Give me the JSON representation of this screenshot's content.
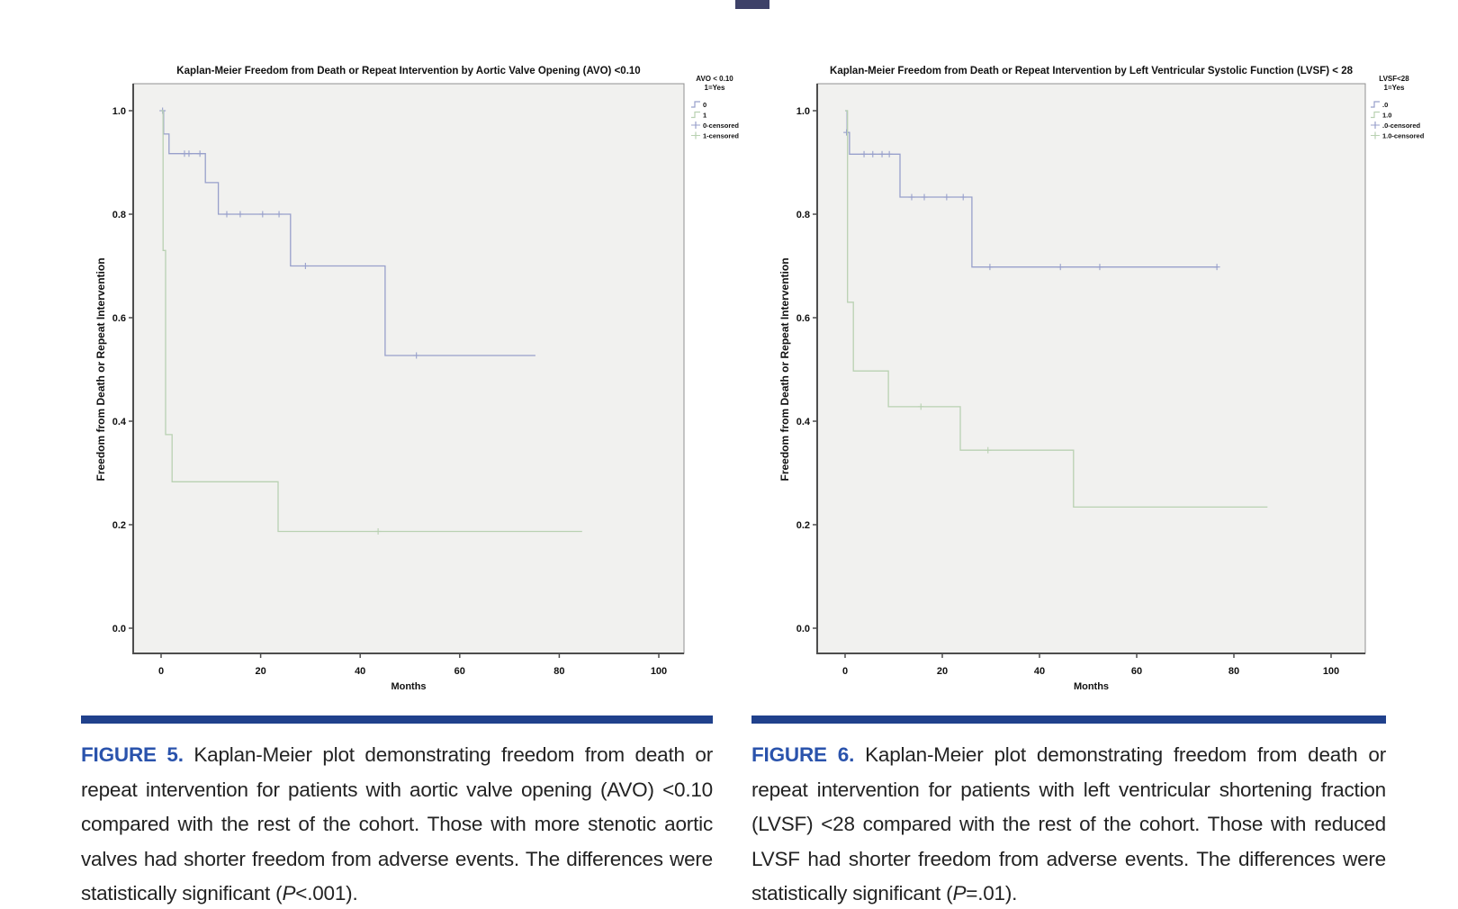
{
  "chart_data": [
    {
      "type": "line",
      "subtype": "kaplan-meier-step",
      "title": "Kaplan-Meier Freedom from Death or Repeat Intervention by Aortic Valve Opening (AVO) <0.10",
      "xlabel": "Months",
      "ylabel": "Freedom from Death or Repeat Intervention",
      "xlim": [
        0,
        100
      ],
      "ylim": [
        0.0,
        1.0
      ],
      "xticks": [
        0,
        20,
        40,
        60,
        80,
        100
      ],
      "yticks": [
        "1.0",
        "0.8",
        "0.6",
        "0.4",
        "0.2",
        "0.0"
      ],
      "grid": false,
      "legend_position": "outside-top-right",
      "colors": {
        "plot_bg": "#f1f1ef",
        "frame": "#909090",
        "axis": "#4d4d4d",
        "text": "#111111"
      },
      "legend": {
        "header_line1": "AVO < 0.10",
        "header_line2": "1=Yes",
        "items": [
          {
            "label": "0",
            "glyph": "line",
            "color": "#98a0cb"
          },
          {
            "label": "1",
            "glyph": "line",
            "color": "#b9d1b2"
          },
          {
            "label": "0-censored",
            "glyph": "plus",
            "color": "#98a0cb"
          },
          {
            "label": "1-censored",
            "glyph": "plus",
            "color": "#b9d1b2"
          }
        ]
      },
      "series": [
        {
          "name": "0",
          "color": "#98a0cb",
          "steps": [
            [
              0,
              1.0
            ],
            [
              0.5,
              0.955
            ],
            [
              1.6,
              0.917
            ],
            [
              8.9,
              0.861
            ],
            [
              11.5,
              0.8
            ],
            [
              26,
              0.7
            ],
            [
              45,
              0.527
            ]
          ],
          "end": 75.2,
          "censored": [
            [
              0.3,
              1.0
            ],
            [
              4.7,
              0.917
            ],
            [
              5.6,
              0.917
            ],
            [
              7.8,
              0.917
            ],
            [
              13.2,
              0.8
            ],
            [
              15.9,
              0.8
            ],
            [
              20.4,
              0.8
            ],
            [
              23.7,
              0.8
            ],
            [
              29,
              0.7
            ],
            [
              51.3,
              0.527
            ]
          ]
        },
        {
          "name": "1",
          "color": "#b9d1b2",
          "steps": [
            [
              0,
              1.0
            ],
            [
              0.4,
              0.73
            ],
            [
              0.9,
              0.374
            ],
            [
              2.2,
              0.283
            ],
            [
              23.5,
              0.187
            ]
          ],
          "end": 84.6,
          "censored": [
            [
              43.6,
              0.187
            ]
          ]
        }
      ]
    },
    {
      "type": "line",
      "subtype": "kaplan-meier-step",
      "title": "Kaplan-Meier Freedom from Death or Repeat Intervention by Left Ventricular Systolic Function (LVSF) < 28",
      "xlabel": "Months",
      "ylabel": "Freedom from Death or Repeat Intervention",
      "xlim": [
        0,
        100
      ],
      "ylim": [
        0.0,
        1.0
      ],
      "xticks": [
        0,
        20,
        40,
        60,
        80,
        100
      ],
      "yticks": [
        "1.0",
        "0.8",
        "0.6",
        "0.4",
        "0.2",
        "0.0"
      ],
      "grid": false,
      "legend_position": "outside-top-right",
      "colors": {
        "plot_bg": "#f1f1ef",
        "frame": "#909090",
        "axis": "#4d4d4d",
        "text": "#111111"
      },
      "legend": {
        "header_line1": "LVSF<28",
        "header_line2": "1=Yes",
        "items": [
          {
            "label": ".0",
            "glyph": "line",
            "color": "#98a0cb"
          },
          {
            "label": "1.0",
            "glyph": "line",
            "color": "#b9d1b2"
          },
          {
            "label": ".0-censored",
            "glyph": "plus",
            "color": "#98a0cb"
          },
          {
            "label": "1.0-censored",
            "glyph": "plus",
            "color": "#b9d1b2"
          }
        ]
      },
      "series": [
        {
          "name": ".0",
          "color": "#98a0cb",
          "steps": [
            [
              0,
              1.0
            ],
            [
              0.4,
              0.958
            ],
            [
              0.9,
              0.916
            ],
            [
              11.3,
              0.833
            ],
            [
              26.1,
              0.698
            ]
          ],
          "end": 76.7,
          "censored": [
            [
              0.3,
              0.958
            ],
            [
              3.9,
              0.916
            ],
            [
              5.7,
              0.916
            ],
            [
              7.6,
              0.916
            ],
            [
              9.1,
              0.916
            ],
            [
              13.7,
              0.833
            ],
            [
              16.3,
              0.833
            ],
            [
              20.9,
              0.833
            ],
            [
              24.3,
              0.833
            ],
            [
              29.8,
              0.698
            ],
            [
              44.3,
              0.698
            ],
            [
              52.4,
              0.698
            ],
            [
              76.5,
              0.698
            ]
          ]
        },
        {
          "name": "1.0",
          "color": "#b9d1b2",
          "steps": [
            [
              0,
              1.0
            ],
            [
              0.5,
              0.63
            ],
            [
              1.7,
              0.497
            ],
            [
              8.9,
              0.428
            ],
            [
              23.7,
              0.344
            ],
            [
              47,
              0.234
            ]
          ],
          "end": 86.9,
          "censored": [
            [
              15.6,
              0.428
            ],
            [
              29.4,
              0.344
            ]
          ]
        }
      ]
    }
  ],
  "captions": [
    {
      "label": "FIGURE 5.",
      "body": " Kaplan-Meier plot demonstrating freedom from death or repeat intervention for patients with aortic valve opening (AVO) <0.10 compared with the rest of the cohort. Those with more stenotic aortic valves had shorter freedom from adverse events. The differences were statistically significant (",
      "p": "P",
      "tail": "<.001)."
    },
    {
      "label": "FIGURE 6.",
      "body": " Kaplan-Meier plot demonstrating freedom from death or repeat intervention for patients with left ventricular shortening fraction (LVSF) <28 compared with the rest of the cohort. Those with reduced LVSF had shorter freedom from adverse events. The differences were statistically significant (",
      "p": "P",
      "tail": "=.01)."
    }
  ]
}
